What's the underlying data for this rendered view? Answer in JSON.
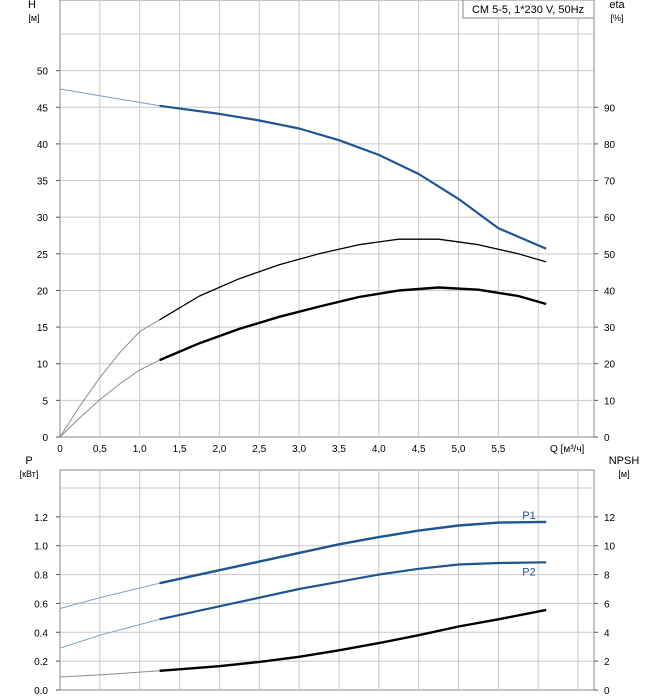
{
  "colors": {
    "blue": "#1f5590",
    "black": "#000000",
    "grid": "#c8c8c8",
    "extrap": "#8c8c8c",
    "extrap_blue": "#7d9bc2"
  },
  "chart_data": [
    {
      "type": "line",
      "title": "CM 5-5, 1*230 V, 50Hz",
      "xlabel": "Q [м³/ч]",
      "ylabel": "H",
      "ylabel_unit": "[м]",
      "y2label": "eta",
      "y2label_unit": "[%]",
      "xlim": [
        0,
        6.7
      ],
      "ylim": [
        0,
        55
      ],
      "y2lim": [
        0,
        110
      ],
      "x_ticks": [
        "0",
        "0,5",
        "1,0",
        "1,5",
        "2,0",
        "2,5",
        "3,0",
        "3,5",
        "4,0",
        "4,5",
        "5,0",
        "5,5"
      ],
      "y_ticks": [
        "0",
        "5",
        "10",
        "15",
        "20",
        "25",
        "30",
        "35",
        "40",
        "45",
        "50"
      ],
      "y2_ticks": [
        "0",
        "10",
        "20",
        "30",
        "40",
        "50",
        "60",
        "70",
        "80",
        "90"
      ],
      "grid": true,
      "series": [
        {
          "axis": "left",
          "color": "blue",
          "x": [
            0,
            1.25,
            2.0,
            2.5,
            3.0,
            3.5,
            4.0,
            4.5,
            5.0,
            5.5,
            6.1
          ],
          "y": [
            47.5,
            45.2,
            44.1,
            43.2,
            42.1,
            40.5,
            38.5,
            35.9,
            32.5,
            28.5,
            25.7
          ],
          "op_start": 1.25
        },
        {
          "axis": "right",
          "color": "black",
          "x": [
            0,
            0.25,
            0.5,
            0.75,
            1.0,
            1.25,
            1.75,
            2.25,
            2.75,
            3.25,
            3.75,
            4.25,
            4.75,
            5.25,
            5.75,
            6.1
          ],
          "y": [
            0,
            8.5,
            16.2,
            23,
            28.8,
            32,
            38.5,
            43.2,
            47,
            50,
            52.5,
            54,
            54,
            52.5,
            50,
            47.8
          ],
          "op_start": 1.25
        },
        {
          "axis": "right",
          "color": "black",
          "thick": true,
          "x": [
            0,
            0.25,
            0.5,
            0.75,
            1.0,
            1.25,
            1.75,
            2.25,
            2.75,
            3.25,
            3.75,
            4.25,
            4.75,
            5.25,
            5.75,
            6.1
          ],
          "y": [
            0,
            5.3,
            10.2,
            14.5,
            18.3,
            21,
            25.6,
            29.5,
            32.8,
            35.6,
            38.2,
            40,
            40.8,
            40.2,
            38.5,
            36.3
          ],
          "op_start": 1.25
        }
      ]
    },
    {
      "type": "line",
      "ylabel": "P",
      "ylabel_unit": "[кВт]",
      "y2label": "NPSH",
      "y2label_unit": "[м]",
      "xlim": [
        0,
        6.7
      ],
      "ylim": [
        0,
        1.4
      ],
      "y2lim": [
        0,
        14
      ],
      "y_ticks": [
        "0.0",
        "0.2",
        "0.4",
        "0.6",
        "0.8",
        "1.0",
        "1.2"
      ],
      "y2_ticks": [
        "0",
        "2",
        "4",
        "6",
        "8",
        "10",
        "12"
      ],
      "grid": true,
      "series": [
        {
          "name": "P1",
          "axis": "left",
          "color": "blue",
          "thick": true,
          "x": [
            0,
            0.5,
            1.25,
            2.0,
            2.5,
            3.0,
            3.5,
            4.0,
            4.5,
            5.0,
            5.5,
            6.1
          ],
          "y": [
            0.565,
            0.64,
            0.74,
            0.83,
            0.89,
            0.95,
            1.01,
            1.06,
            1.105,
            1.14,
            1.16,
            1.165
          ],
          "op_start": 1.25
        },
        {
          "name": "P2",
          "axis": "left",
          "color": "blue",
          "x": [
            0,
            0.5,
            1.25,
            2.0,
            2.5,
            3.0,
            3.5,
            4.0,
            4.5,
            5.0,
            5.5,
            6.1
          ],
          "y": [
            0.29,
            0.38,
            0.49,
            0.58,
            0.64,
            0.7,
            0.75,
            0.8,
            0.84,
            0.87,
            0.88,
            0.885
          ],
          "op_start": 1.25
        },
        {
          "axis": "right",
          "color": "black",
          "thick": true,
          "x": [
            0,
            0.5,
            1.25,
            2.0,
            2.5,
            3.0,
            3.5,
            4.0,
            4.5,
            5.0,
            5.5,
            6.1
          ],
          "y": [
            0.9,
            1.05,
            1.33,
            1.65,
            1.95,
            2.3,
            2.75,
            3.25,
            3.8,
            4.4,
            4.9,
            5.55
          ],
          "op_start": 1.25
        }
      ]
    }
  ]
}
